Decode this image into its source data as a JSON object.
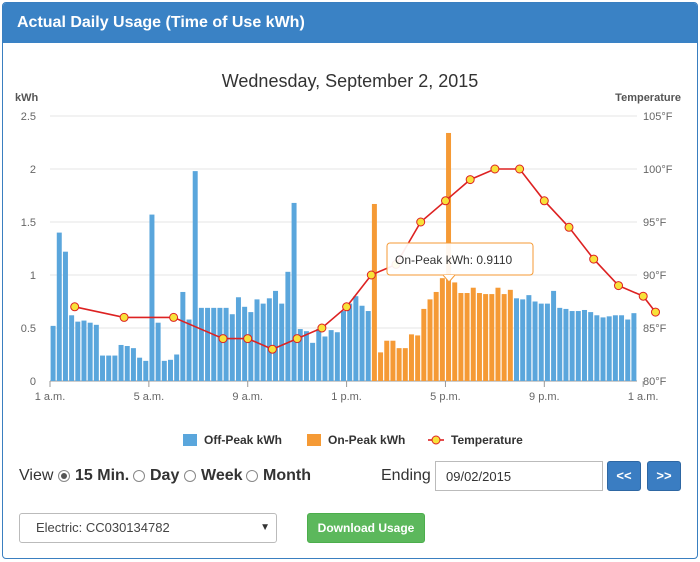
{
  "header": {
    "title": "Actual Daily Usage (Time of Use kWh)"
  },
  "controls": {
    "view_label": "View",
    "options": [
      {
        "label": "15 Min.",
        "checked": true
      },
      {
        "label": "Day",
        "checked": false
      },
      {
        "label": "Week",
        "checked": false
      },
      {
        "label": "Month",
        "checked": false
      }
    ],
    "ending_label": "Ending",
    "ending_value": "09/02/2015",
    "prev_label": "<<",
    "next_label": ">>"
  },
  "account_select": {
    "value": "Electric: CC030134782"
  },
  "download_button": {
    "label": "Download Usage"
  },
  "chart_data": {
    "type": "bar",
    "title": "Wednesday, September 2, 2015",
    "ylabel": "kWh",
    "y2label": "Temperature",
    "ylim": [
      0,
      2.5
    ],
    "y2lim": [
      80,
      105
    ],
    "yticks": [
      "0",
      "0.5",
      "1",
      "1.5",
      "2",
      "2.5"
    ],
    "y2ticks": [
      "80°F",
      "85°F",
      "90°F",
      "95°F",
      "100°F",
      "105°F"
    ],
    "xticks": [
      "1 a.m.",
      "5 a.m.",
      "9 a.m.",
      "1 p.m.",
      "5 p.m.",
      "9 p.m.",
      "1 a.m."
    ],
    "legend_position": "bottom",
    "colors": {
      "offpeak": "#5aa6dc",
      "onpeak": "#f59a35",
      "temp_line": "#dd2222",
      "temp_marker": "#f7e23a"
    },
    "series": [
      {
        "name": "Off-Peak kWh",
        "color": "#5aa6dc"
      },
      {
        "name": "On-Peak kWh",
        "color": "#f59a35"
      },
      {
        "name": "Temperature",
        "color": "#dd2222"
      }
    ],
    "usage": [
      0.52,
      1.4,
      1.22,
      0.62,
      0.56,
      0.57,
      0.55,
      0.53,
      0.24,
      0.24,
      0.24,
      0.34,
      0.33,
      0.31,
      0.22,
      0.19,
      1.57,
      0.55,
      0.19,
      0.2,
      0.25,
      0.84,
      0.58,
      1.98,
      0.69,
      0.69,
      0.69,
      0.69,
      0.69,
      0.63,
      0.79,
      0.7,
      0.65,
      0.77,
      0.73,
      0.78,
      0.85,
      0.73,
      1.03,
      1.68,
      0.49,
      0.47,
      0.36,
      0.49,
      0.42,
      0.48,
      0.46,
      0.66,
      0.73,
      0.8,
      0.71,
      0.66,
      1.67,
      0.27,
      0.38,
      0.38,
      0.31,
      0.31,
      0.44,
      0.43,
      0.68,
      0.77,
      0.84,
      0.97,
      2.34,
      0.93,
      0.83,
      0.83,
      0.88,
      0.83,
      0.82,
      0.82,
      0.88,
      0.82,
      0.86,
      0.78,
      0.77,
      0.81,
      0.75,
      0.73,
      0.73,
      0.85,
      0.69,
      0.68,
      0.66,
      0.66,
      0.67,
      0.65,
      0.62,
      0.6,
      0.61,
      0.62,
      0.62,
      0.58,
      0.64
    ],
    "onpeak_range": [
      52,
      74
    ],
    "temperature": {
      "hours": [
        2,
        4,
        6,
        8,
        9,
        10,
        11,
        12,
        13,
        14,
        15,
        16,
        17,
        18,
        19,
        20,
        21,
        22,
        23,
        24,
        25,
        25.5
      ],
      "values": [
        87,
        86,
        86,
        84,
        84,
        83,
        84,
        85,
        87,
        90,
        91,
        95,
        97,
        99,
        100,
        100,
        97,
        94.5,
        91.5,
        89,
        88,
        86.5
      ]
    },
    "tooltip": {
      "label": "On-Peak kWh",
      "value": "0.9110"
    }
  }
}
